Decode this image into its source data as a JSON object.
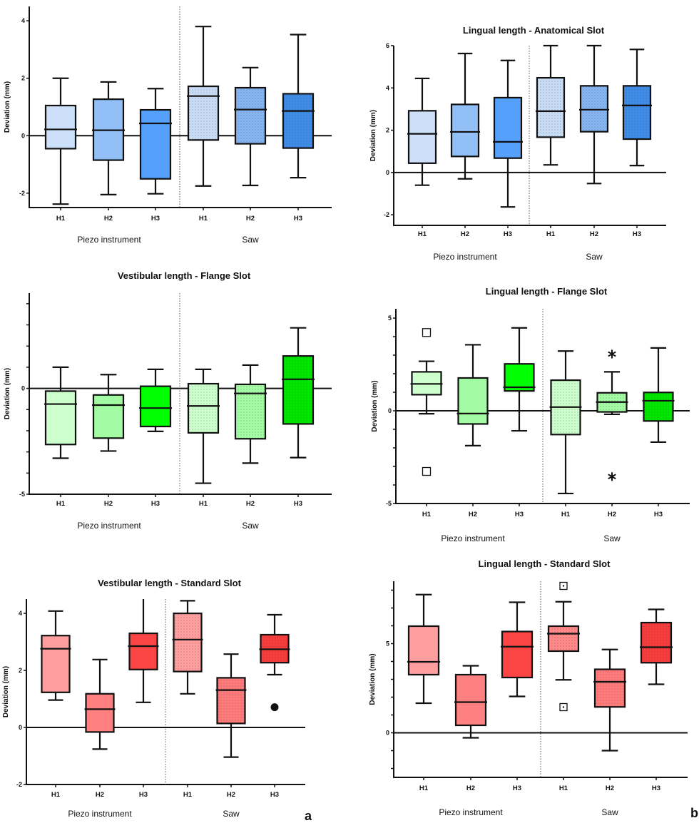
{
  "figure": {
    "letters": [
      "a",
      "b"
    ],
    "patterns": {
      "piezo": "solid",
      "saw": "dotted"
    }
  },
  "chart_data": [
    {
      "id": "vest-anat",
      "type": "boxplot",
      "title": "",
      "ylabel": "Deviation (mm)",
      "ylim": [
        -2.5,
        4.5
      ],
      "yticks_labeled": [
        -2,
        0,
        2,
        4
      ],
      "yticks_minor": [],
      "reference_line": 0,
      "groups": [
        "Piezo instrument",
        "Saw"
      ],
      "categories": [
        "H1",
        "H2",
        "H3",
        "H1",
        "H2",
        "H3"
      ],
      "colors": [
        "#cce0f9",
        "#92c0f6",
        "#54a0fb",
        "#c8dcf5",
        "#86b4f0",
        "#3f8ce8"
      ],
      "boxes": [
        {
          "group": "Piezo instrument",
          "label": "H1",
          "whisker_high": 2.0,
          "q3": 1.05,
          "median": 0.22,
          "q1": -0.45,
          "whisker_low": -2.38,
          "outliers": []
        },
        {
          "group": "Piezo instrument",
          "label": "H2",
          "whisker_high": 1.87,
          "q3": 1.27,
          "median": 0.19,
          "q1": -0.85,
          "whisker_low": -2.05,
          "outliers": []
        },
        {
          "group": "Piezo instrument",
          "label": "H3",
          "whisker_high": 1.64,
          "q3": 0.9,
          "median": 0.43,
          "q1": -1.5,
          "whisker_low": -2.02,
          "outliers": []
        },
        {
          "group": "Saw",
          "label": "H1",
          "whisker_high": 3.8,
          "q3": 1.72,
          "median": 1.38,
          "q1": -0.15,
          "whisker_low": -1.75,
          "outliers": []
        },
        {
          "group": "Saw",
          "label": "H2",
          "whisker_high": 2.37,
          "q3": 1.67,
          "median": 0.91,
          "q1": -0.28,
          "whisker_low": -1.73,
          "outliers": []
        },
        {
          "group": "Saw",
          "label": "H3",
          "whisker_high": 3.52,
          "q3": 1.46,
          "median": 0.86,
          "q1": -0.43,
          "whisker_low": -1.46,
          "outliers": []
        }
      ]
    },
    {
      "id": "ling-anat",
      "type": "boxplot",
      "title": "Lingual length - Anatomical Slot",
      "ylabel": "Deviation (mm)",
      "ylim": [
        -2.5,
        6
      ],
      "yticks_labeled": [
        -2,
        0,
        2,
        4,
        6
      ],
      "yticks_minor": [],
      "reference_line": 0,
      "groups": [
        "Piezo instrument",
        "Saw"
      ],
      "categories": [
        "H1",
        "H2",
        "H3",
        "H1",
        "H2",
        "H3"
      ],
      "colors": [
        "#cce0f9",
        "#92c0f6",
        "#54a0fb",
        "#c8dcf5",
        "#86b4f0",
        "#3f8ce8"
      ],
      "boxes": [
        {
          "group": "Piezo instrument",
          "label": "H1",
          "whisker_high": 4.45,
          "q3": 2.92,
          "median": 1.83,
          "q1": 0.44,
          "whisker_low": -0.6,
          "outliers": []
        },
        {
          "group": "Piezo instrument",
          "label": "H2",
          "whisker_high": 5.63,
          "q3": 3.22,
          "median": 1.92,
          "q1": 0.76,
          "whisker_low": -0.3,
          "outliers": []
        },
        {
          "group": "Piezo instrument",
          "label": "H3",
          "whisker_high": 5.3,
          "q3": 3.54,
          "median": 1.45,
          "q1": 0.68,
          "whisker_low": -1.63,
          "outliers": []
        },
        {
          "group": "Saw",
          "label": "H1",
          "whisker_high": 6.0,
          "q3": 4.48,
          "median": 2.9,
          "q1": 1.67,
          "whisker_low": 0.36,
          "outliers": []
        },
        {
          "group": "Saw",
          "label": "H2",
          "whisker_high": 6.0,
          "q3": 4.1,
          "median": 2.97,
          "q1": 1.93,
          "whisker_low": -0.52,
          "outliers": []
        },
        {
          "group": "Saw",
          "label": "H3",
          "whisker_high": 5.82,
          "q3": 4.1,
          "median": 3.17,
          "q1": 1.58,
          "whisker_low": 0.33,
          "outliers": []
        }
      ]
    },
    {
      "id": "vest-flange",
      "type": "boxplot",
      "title": "Vestibular length - Flange Slot",
      "ylabel": "Deviation (mm)",
      "ylim": [
        -5,
        4.5
      ],
      "yticks_labeled": [
        -5,
        0
      ],
      "yticks_minor": [
        -4,
        -3,
        -2,
        -1,
        1,
        2,
        3,
        4
      ],
      "reference_line": 0,
      "groups": [
        "Piezo instrument",
        "Saw"
      ],
      "categories": [
        "H1",
        "H2",
        "H3",
        "H1",
        "H2",
        "H3"
      ],
      "colors": [
        "#ccffcc",
        "#a3fca3",
        "#00ff00",
        "#ccffcc",
        "#a3fca3",
        "#00e600"
      ],
      "boxes": [
        {
          "group": "Piezo instrument",
          "label": "H1",
          "whisker_high": 1.0,
          "q3": -0.13,
          "median": -0.74,
          "q1": -2.65,
          "whisker_low": -3.3,
          "outliers": []
        },
        {
          "group": "Piezo instrument",
          "label": "H2",
          "whisker_high": 0.65,
          "q3": -0.31,
          "median": -0.79,
          "q1": -2.35,
          "whisker_low": -2.96,
          "outliers": []
        },
        {
          "group": "Piezo instrument",
          "label": "H3",
          "whisker_high": 0.9,
          "q3": 0.1,
          "median": -0.93,
          "q1": -1.8,
          "whisker_low": -2.03,
          "outliers": []
        },
        {
          "group": "Saw",
          "label": "H1",
          "whisker_high": 0.9,
          "q3": 0.22,
          "median": -0.83,
          "q1": -2.1,
          "whisker_low": -4.48,
          "outliers": []
        },
        {
          "group": "Saw",
          "label": "H2",
          "whisker_high": 1.1,
          "q3": 0.19,
          "median": -0.24,
          "q1": -2.38,
          "whisker_low": -3.53,
          "outliers": []
        },
        {
          "group": "Saw",
          "label": "H3",
          "whisker_high": 2.86,
          "q3": 1.53,
          "median": 0.43,
          "q1": -1.68,
          "whisker_low": -3.27,
          "outliers": []
        }
      ]
    },
    {
      "id": "ling-flange",
      "type": "boxplot",
      "title": "Lingual length - Flange Slot",
      "ylabel": "Deviation (mm)",
      "ylim": [
        -5,
        5.5
      ],
      "yticks_labeled": [
        -5,
        0,
        5
      ],
      "yticks_minor": [
        -4,
        -3,
        -2,
        -1,
        1,
        2,
        3,
        4
      ],
      "reference_line": 0,
      "groups": [
        "Piezo instrument",
        "Saw"
      ],
      "categories": [
        "H1",
        "H2",
        "H3",
        "H1",
        "H2",
        "H3"
      ],
      "colors": [
        "#ccffcc",
        "#a3fca3",
        "#00ff00",
        "#ccffcc",
        "#a3fca3",
        "#00e600"
      ],
      "boxes": [
        {
          "group": "Piezo instrument",
          "label": "H1",
          "whisker_high": 2.67,
          "q3": 2.1,
          "median": 1.45,
          "q1": 0.87,
          "whisker_low": -0.16,
          "outliers": [
            {
              "value": 4.22,
              "marker": "square"
            },
            {
              "value": -3.27,
              "marker": "square"
            }
          ]
        },
        {
          "group": "Piezo instrument",
          "label": "H2",
          "whisker_high": 3.56,
          "q3": 1.77,
          "median": -0.15,
          "q1": -0.71,
          "whisker_low": -1.88,
          "outliers": []
        },
        {
          "group": "Piezo instrument",
          "label": "H3",
          "whisker_high": 4.47,
          "q3": 2.53,
          "median": 1.27,
          "q1": 1.07,
          "whisker_low": -1.08,
          "outliers": []
        },
        {
          "group": "Saw",
          "label": "H1",
          "whisker_high": 3.22,
          "q3": 1.65,
          "median": 0.2,
          "q1": -1.28,
          "whisker_low": -4.46,
          "outliers": []
        },
        {
          "group": "Saw",
          "label": "H2",
          "whisker_high": 2.1,
          "q3": 0.97,
          "median": 0.47,
          "q1": -0.06,
          "whisker_low": -0.19,
          "outliers": [
            {
              "value": 3.06,
              "marker": "asterisk"
            },
            {
              "value": -3.55,
              "marker": "asterisk"
            }
          ]
        },
        {
          "group": "Saw",
          "label": "H3",
          "whisker_high": 3.39,
          "q3": 0.99,
          "median": 0.54,
          "q1": -0.55,
          "whisker_low": -1.69,
          "outliers": []
        }
      ]
    },
    {
      "id": "vest-std",
      "type": "boxplot",
      "title": "Vestibular length - Standard Slot",
      "ylabel": "Deviation (mm)",
      "ylim": [
        -2,
        4.5
      ],
      "yticks_labeled": [
        -2,
        0,
        2,
        4
      ],
      "yticks_minor": [],
      "reference_line": 0,
      "groups": [
        "Piezo instrument",
        "Saw"
      ],
      "categories": [
        "H1",
        "H2",
        "H3",
        "H1",
        "H2",
        "H3"
      ],
      "colors": [
        "#ff9e9e",
        "#ff8080",
        "#fb4545",
        "#ff9e9e",
        "#ff7a7a",
        "#f73c3c"
      ],
      "boxes": [
        {
          "group": "Piezo instrument",
          "label": "H1",
          "whisker_high": 4.08,
          "q3": 3.22,
          "median": 2.76,
          "q1": 1.23,
          "whisker_low": 0.96,
          "outliers": []
        },
        {
          "group": "Piezo instrument",
          "label": "H2",
          "whisker_high": 2.38,
          "q3": 1.18,
          "median": 0.64,
          "q1": -0.16,
          "whisker_low": -0.76,
          "outliers": []
        },
        {
          "group": "Piezo instrument",
          "label": "H3",
          "whisker_high": 4.6,
          "q3": 3.3,
          "median": 2.85,
          "q1": 2.03,
          "whisker_low": 0.88,
          "outliers": []
        },
        {
          "group": "Saw",
          "label": "H1",
          "whisker_high": 4.44,
          "q3": 4.0,
          "median": 3.08,
          "q1": 1.96,
          "whisker_low": 1.18,
          "outliers": []
        },
        {
          "group": "Saw",
          "label": "H2",
          "whisker_high": 2.57,
          "q3": 1.74,
          "median": 1.31,
          "q1": 0.14,
          "whisker_low": -1.04,
          "outliers": []
        },
        {
          "group": "Saw",
          "label": "H3",
          "whisker_high": 3.95,
          "q3": 3.25,
          "median": 2.74,
          "q1": 2.27,
          "whisker_low": 1.85,
          "outliers": [
            {
              "value": 0.71,
              "marker": "dot"
            }
          ]
        }
      ]
    },
    {
      "id": "ling-std",
      "type": "boxplot",
      "title": "Lingual length - Standard Slot",
      "ylabel": "Deviation (mm)",
      "ylim": [
        -2.5,
        8.5
      ],
      "yticks_labeled": [
        0,
        5
      ],
      "yticks_minor": [
        -2,
        -1,
        1,
        2,
        3,
        4,
        6,
        7,
        8
      ],
      "reference_line": 0,
      "groups": [
        "Piezo instrument",
        "Saw"
      ],
      "categories": [
        "H1",
        "H2",
        "H3",
        "H1",
        "H2",
        "H3"
      ],
      "colors": [
        "#ff9e9e",
        "#ff8080",
        "#fb4545",
        "#ff8888",
        "#ff7a7a",
        "#f73c3c"
      ],
      "boxes": [
        {
          "group": "Piezo instrument",
          "label": "H1",
          "whisker_high": 7.75,
          "q3": 5.98,
          "median": 3.98,
          "q1": 3.26,
          "whisker_low": 1.66,
          "outliers": []
        },
        {
          "group": "Piezo instrument",
          "label": "H2",
          "whisker_high": 3.76,
          "q3": 3.26,
          "median": 1.72,
          "q1": 0.42,
          "whisker_low": -0.28,
          "outliers": []
        },
        {
          "group": "Piezo instrument",
          "label": "H3",
          "whisker_high": 7.32,
          "q3": 5.68,
          "median": 4.83,
          "q1": 3.1,
          "whisker_low": 2.04,
          "outliers": []
        },
        {
          "group": "Saw",
          "label": "H1",
          "whisker_high": 7.35,
          "q3": 5.98,
          "median": 5.56,
          "q1": 4.58,
          "whisker_low": 2.97,
          "outliers": [
            {
              "value": 8.24,
              "marker": "dotted-square"
            },
            {
              "value": 1.44,
              "marker": "dotted-square"
            }
          ]
        },
        {
          "group": "Saw",
          "label": "H2",
          "whisker_high": 4.67,
          "q3": 3.56,
          "median": 2.86,
          "q1": 1.45,
          "whisker_low": -1.0,
          "outliers": []
        },
        {
          "group": "Saw",
          "label": "H3",
          "whisker_high": 6.92,
          "q3": 6.18,
          "median": 4.8,
          "q1": 3.93,
          "whisker_low": 2.72,
          "outliers": []
        }
      ]
    }
  ]
}
